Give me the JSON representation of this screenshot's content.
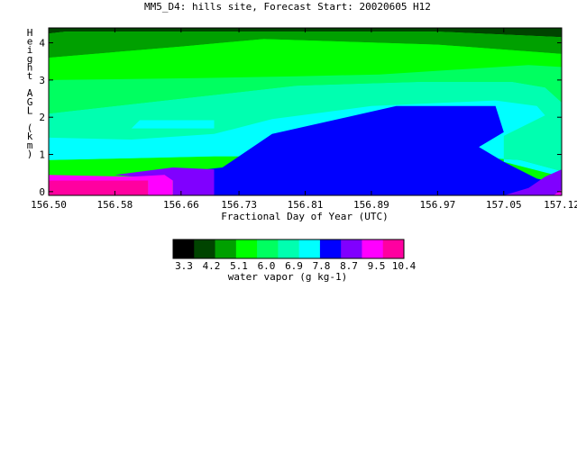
{
  "chart_data": {
    "type": "heatmap",
    "title": "MM5_D4: hills site,  Forecast Start: 20020605 H12",
    "xlabel": "Fractional Day of Year (UTC)",
    "ylabel": "Height AGL (km)",
    "xlim": [
      156.5,
      157.12
    ],
    "ylim": [
      -0.1,
      4.4
    ],
    "x_ticks": [
      "156.50",
      "156.58",
      "156.66",
      "156.73",
      "156.81",
      "156.89",
      "156.97",
      "157.05",
      "157.12"
    ],
    "y_ticks": [
      "0",
      "1",
      "2",
      "3",
      "4"
    ],
    "colorbar": {
      "label": "water vapor (g kg-1)",
      "tick_labels": [
        "3.3",
        "4.2",
        "5.1",
        "6.0",
        "6.9",
        "7.8",
        "8.7",
        "9.5",
        "10.4"
      ],
      "colors": [
        "#000000",
        "#004400",
        "#00a000",
        "#00ff00",
        "#00ff60",
        "#00ffb0",
        "#00ffff",
        "#0000ff",
        "#8000ff",
        "#ff00ff",
        "#ff00a0"
      ]
    },
    "regions": [
      {
        "level": 1,
        "points": [
          [
            156.5,
            4.4
          ],
          [
            157.12,
            4.4
          ],
          [
            157.12,
            4.15
          ],
          [
            156.97,
            4.3
          ],
          [
            156.52,
            4.3
          ],
          [
            156.5,
            4.25
          ]
        ]
      },
      {
        "level": 2,
        "points": [
          [
            156.5,
            4.25
          ],
          [
            156.52,
            4.3
          ],
          [
            156.97,
            4.3
          ],
          [
            157.12,
            4.15
          ],
          [
            157.12,
            3.7
          ],
          [
            156.97,
            3.95
          ],
          [
            156.76,
            4.1
          ],
          [
            156.66,
            3.9
          ],
          [
            156.5,
            3.6
          ]
        ]
      },
      {
        "level": 3,
        "points": [
          [
            156.5,
            3.6
          ],
          [
            156.66,
            3.9
          ],
          [
            156.76,
            4.1
          ],
          [
            156.97,
            3.95
          ],
          [
            157.12,
            3.7
          ],
          [
            157.12,
            3.35
          ],
          [
            157.08,
            3.4
          ],
          [
            156.9,
            3.15
          ],
          [
            156.8,
            3.1
          ],
          [
            156.68,
            3.05
          ],
          [
            156.5,
            3.0
          ]
        ]
      },
      {
        "level": 4,
        "points": [
          [
            156.5,
            3.0
          ],
          [
            156.68,
            3.05
          ],
          [
            156.8,
            3.1
          ],
          [
            156.9,
            3.15
          ],
          [
            157.08,
            3.4
          ],
          [
            157.12,
            3.35
          ],
          [
            157.12,
            2.4
          ],
          [
            157.1,
            2.8
          ],
          [
            157.06,
            2.95
          ],
          [
            156.95,
            2.95
          ],
          [
            156.8,
            2.85
          ],
          [
            156.68,
            2.55
          ],
          [
            156.6,
            2.35
          ],
          [
            156.5,
            2.1
          ]
        ]
      },
      {
        "level": 5,
        "points": [
          [
            156.5,
            2.1
          ],
          [
            156.6,
            2.35
          ],
          [
            156.68,
            2.55
          ],
          [
            156.8,
            2.85
          ],
          [
            156.95,
            2.95
          ],
          [
            157.06,
            2.95
          ],
          [
            157.1,
            2.8
          ],
          [
            157.12,
            2.4
          ],
          [
            157.12,
            0.55
          ],
          [
            157.07,
            0.85
          ],
          [
            157.0,
            0.95
          ],
          [
            156.7,
            0.95
          ],
          [
            156.6,
            0.9
          ],
          [
            156.5,
            0.85
          ]
        ]
      },
      {
        "level": 6,
        "points": [
          [
            156.5,
            0.85
          ],
          [
            156.6,
            0.9
          ],
          [
            156.7,
            0.95
          ],
          [
            157.0,
            0.95
          ],
          [
            157.07,
            0.85
          ],
          [
            157.12,
            0.55
          ],
          [
            157.12,
            0.4
          ],
          [
            157.05,
            0.8
          ],
          [
            157.05,
            1.5
          ],
          [
            157.1,
            2.05
          ],
          [
            157.09,
            2.3
          ],
          [
            157.04,
            2.45
          ],
          [
            156.89,
            2.3
          ],
          [
            156.77,
            1.95
          ],
          [
            156.7,
            1.55
          ],
          [
            156.6,
            1.4
          ],
          [
            156.5,
            1.45
          ]
        ]
      },
      {
        "level": 6,
        "points": [
          [
            156.6,
            1.7
          ],
          [
            156.7,
            1.7
          ],
          [
            156.7,
            1.92
          ],
          [
            156.61,
            1.92
          ]
        ]
      },
      {
        "level": 7,
        "points": [
          [
            156.65,
            0.5
          ],
          [
            156.71,
            0.65
          ],
          [
            156.77,
            1.55
          ],
          [
            156.92,
            2.3
          ],
          [
            157.04,
            2.3
          ],
          [
            157.05,
            1.6
          ],
          [
            157.02,
            1.2
          ],
          [
            157.05,
            0.8
          ],
          [
            157.09,
            0.35
          ],
          [
            157.12,
            0.2
          ],
          [
            157.12,
            -0.1
          ],
          [
            156.7,
            -0.1
          ],
          [
            156.7,
            0.5
          ]
        ]
      },
      {
        "level": 8,
        "points": [
          [
            156.58,
            0.45
          ],
          [
            156.65,
            0.65
          ],
          [
            156.7,
            0.6
          ],
          [
            156.7,
            -0.1
          ],
          [
            156.65,
            -0.1
          ],
          [
            156.65,
            0.3
          ]
        ]
      },
      {
        "level": 8,
        "points": [
          [
            157.05,
            -0.1
          ],
          [
            157.08,
            0.1
          ],
          [
            157.1,
            0.4
          ],
          [
            157.12,
            0.6
          ],
          [
            157.12,
            -0.1
          ]
        ]
      },
      {
        "level": 9,
        "points": [
          [
            156.5,
            0.45
          ],
          [
            156.6,
            0.4
          ],
          [
            156.64,
            0.45
          ],
          [
            156.65,
            0.3
          ],
          [
            156.65,
            -0.1
          ],
          [
            156.62,
            -0.1
          ],
          [
            156.62,
            0.3
          ],
          [
            156.5,
            0.3
          ]
        ]
      },
      {
        "level": 9,
        "points": [
          [
            157.11,
            -0.1
          ],
          [
            157.12,
            0.05
          ],
          [
            157.12,
            -0.1
          ]
        ]
      },
      {
        "level": 10,
        "points": [
          [
            156.5,
            0.3
          ],
          [
            156.62,
            0.3
          ],
          [
            156.62,
            -0.1
          ],
          [
            156.5,
            -0.1
          ]
        ]
      }
    ]
  }
}
